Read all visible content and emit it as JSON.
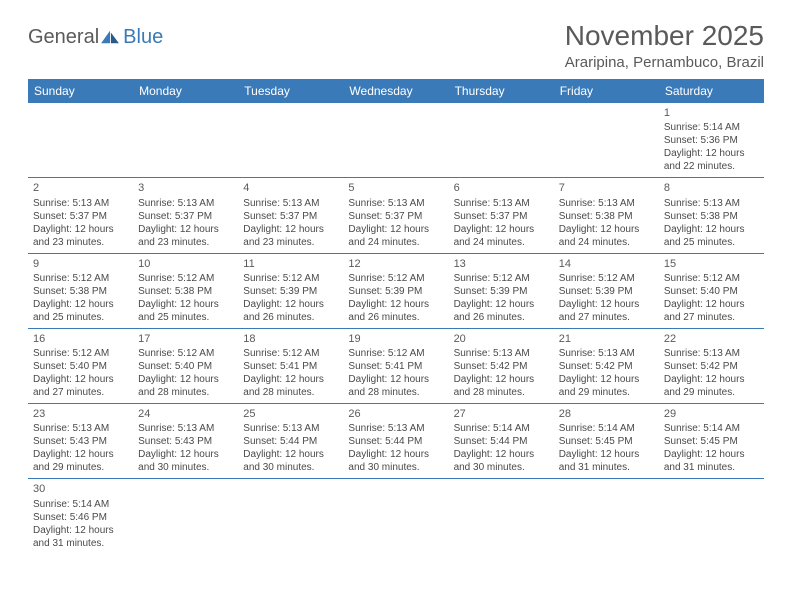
{
  "logo": {
    "text1": "General",
    "text2": "Blue"
  },
  "title": "November 2025",
  "location": "Araripina, Pernambuco, Brazil",
  "colors": {
    "header_bg": "#3a7ab8",
    "header_fg": "#ffffff",
    "text": "#5a5a5a",
    "border": "#3a7ab8"
  },
  "weekdays": [
    "Sunday",
    "Monday",
    "Tuesday",
    "Wednesday",
    "Thursday",
    "Friday",
    "Saturday"
  ],
  "weeks": [
    [
      null,
      null,
      null,
      null,
      null,
      null,
      {
        "n": "1",
        "sr": "Sunrise: 5:14 AM",
        "ss": "Sunset: 5:36 PM",
        "dl": "Daylight: 12 hours and 22 minutes."
      }
    ],
    [
      {
        "n": "2",
        "sr": "Sunrise: 5:13 AM",
        "ss": "Sunset: 5:37 PM",
        "dl": "Daylight: 12 hours and 23 minutes."
      },
      {
        "n": "3",
        "sr": "Sunrise: 5:13 AM",
        "ss": "Sunset: 5:37 PM",
        "dl": "Daylight: 12 hours and 23 minutes."
      },
      {
        "n": "4",
        "sr": "Sunrise: 5:13 AM",
        "ss": "Sunset: 5:37 PM",
        "dl": "Daylight: 12 hours and 23 minutes."
      },
      {
        "n": "5",
        "sr": "Sunrise: 5:13 AM",
        "ss": "Sunset: 5:37 PM",
        "dl": "Daylight: 12 hours and 24 minutes."
      },
      {
        "n": "6",
        "sr": "Sunrise: 5:13 AM",
        "ss": "Sunset: 5:37 PM",
        "dl": "Daylight: 12 hours and 24 minutes."
      },
      {
        "n": "7",
        "sr": "Sunrise: 5:13 AM",
        "ss": "Sunset: 5:38 PM",
        "dl": "Daylight: 12 hours and 24 minutes."
      },
      {
        "n": "8",
        "sr": "Sunrise: 5:13 AM",
        "ss": "Sunset: 5:38 PM",
        "dl": "Daylight: 12 hours and 25 minutes."
      }
    ],
    [
      {
        "n": "9",
        "sr": "Sunrise: 5:12 AM",
        "ss": "Sunset: 5:38 PM",
        "dl": "Daylight: 12 hours and 25 minutes."
      },
      {
        "n": "10",
        "sr": "Sunrise: 5:12 AM",
        "ss": "Sunset: 5:38 PM",
        "dl": "Daylight: 12 hours and 25 minutes."
      },
      {
        "n": "11",
        "sr": "Sunrise: 5:12 AM",
        "ss": "Sunset: 5:39 PM",
        "dl": "Daylight: 12 hours and 26 minutes."
      },
      {
        "n": "12",
        "sr": "Sunrise: 5:12 AM",
        "ss": "Sunset: 5:39 PM",
        "dl": "Daylight: 12 hours and 26 minutes."
      },
      {
        "n": "13",
        "sr": "Sunrise: 5:12 AM",
        "ss": "Sunset: 5:39 PM",
        "dl": "Daylight: 12 hours and 26 minutes."
      },
      {
        "n": "14",
        "sr": "Sunrise: 5:12 AM",
        "ss": "Sunset: 5:39 PM",
        "dl": "Daylight: 12 hours and 27 minutes."
      },
      {
        "n": "15",
        "sr": "Sunrise: 5:12 AM",
        "ss": "Sunset: 5:40 PM",
        "dl": "Daylight: 12 hours and 27 minutes."
      }
    ],
    [
      {
        "n": "16",
        "sr": "Sunrise: 5:12 AM",
        "ss": "Sunset: 5:40 PM",
        "dl": "Daylight: 12 hours and 27 minutes."
      },
      {
        "n": "17",
        "sr": "Sunrise: 5:12 AM",
        "ss": "Sunset: 5:40 PM",
        "dl": "Daylight: 12 hours and 28 minutes."
      },
      {
        "n": "18",
        "sr": "Sunrise: 5:12 AM",
        "ss": "Sunset: 5:41 PM",
        "dl": "Daylight: 12 hours and 28 minutes."
      },
      {
        "n": "19",
        "sr": "Sunrise: 5:12 AM",
        "ss": "Sunset: 5:41 PM",
        "dl": "Daylight: 12 hours and 28 minutes."
      },
      {
        "n": "20",
        "sr": "Sunrise: 5:13 AM",
        "ss": "Sunset: 5:42 PM",
        "dl": "Daylight: 12 hours and 28 minutes."
      },
      {
        "n": "21",
        "sr": "Sunrise: 5:13 AM",
        "ss": "Sunset: 5:42 PM",
        "dl": "Daylight: 12 hours and 29 minutes."
      },
      {
        "n": "22",
        "sr": "Sunrise: 5:13 AM",
        "ss": "Sunset: 5:42 PM",
        "dl": "Daylight: 12 hours and 29 minutes."
      }
    ],
    [
      {
        "n": "23",
        "sr": "Sunrise: 5:13 AM",
        "ss": "Sunset: 5:43 PM",
        "dl": "Daylight: 12 hours and 29 minutes."
      },
      {
        "n": "24",
        "sr": "Sunrise: 5:13 AM",
        "ss": "Sunset: 5:43 PM",
        "dl": "Daylight: 12 hours and 30 minutes."
      },
      {
        "n": "25",
        "sr": "Sunrise: 5:13 AM",
        "ss": "Sunset: 5:44 PM",
        "dl": "Daylight: 12 hours and 30 minutes."
      },
      {
        "n": "26",
        "sr": "Sunrise: 5:13 AM",
        "ss": "Sunset: 5:44 PM",
        "dl": "Daylight: 12 hours and 30 minutes."
      },
      {
        "n": "27",
        "sr": "Sunrise: 5:14 AM",
        "ss": "Sunset: 5:44 PM",
        "dl": "Daylight: 12 hours and 30 minutes."
      },
      {
        "n": "28",
        "sr": "Sunrise: 5:14 AM",
        "ss": "Sunset: 5:45 PM",
        "dl": "Daylight: 12 hours and 31 minutes."
      },
      {
        "n": "29",
        "sr": "Sunrise: 5:14 AM",
        "ss": "Sunset: 5:45 PM",
        "dl": "Daylight: 12 hours and 31 minutes."
      }
    ],
    [
      {
        "n": "30",
        "sr": "Sunrise: 5:14 AM",
        "ss": "Sunset: 5:46 PM",
        "dl": "Daylight: 12 hours and 31 minutes."
      },
      null,
      null,
      null,
      null,
      null,
      null
    ]
  ]
}
